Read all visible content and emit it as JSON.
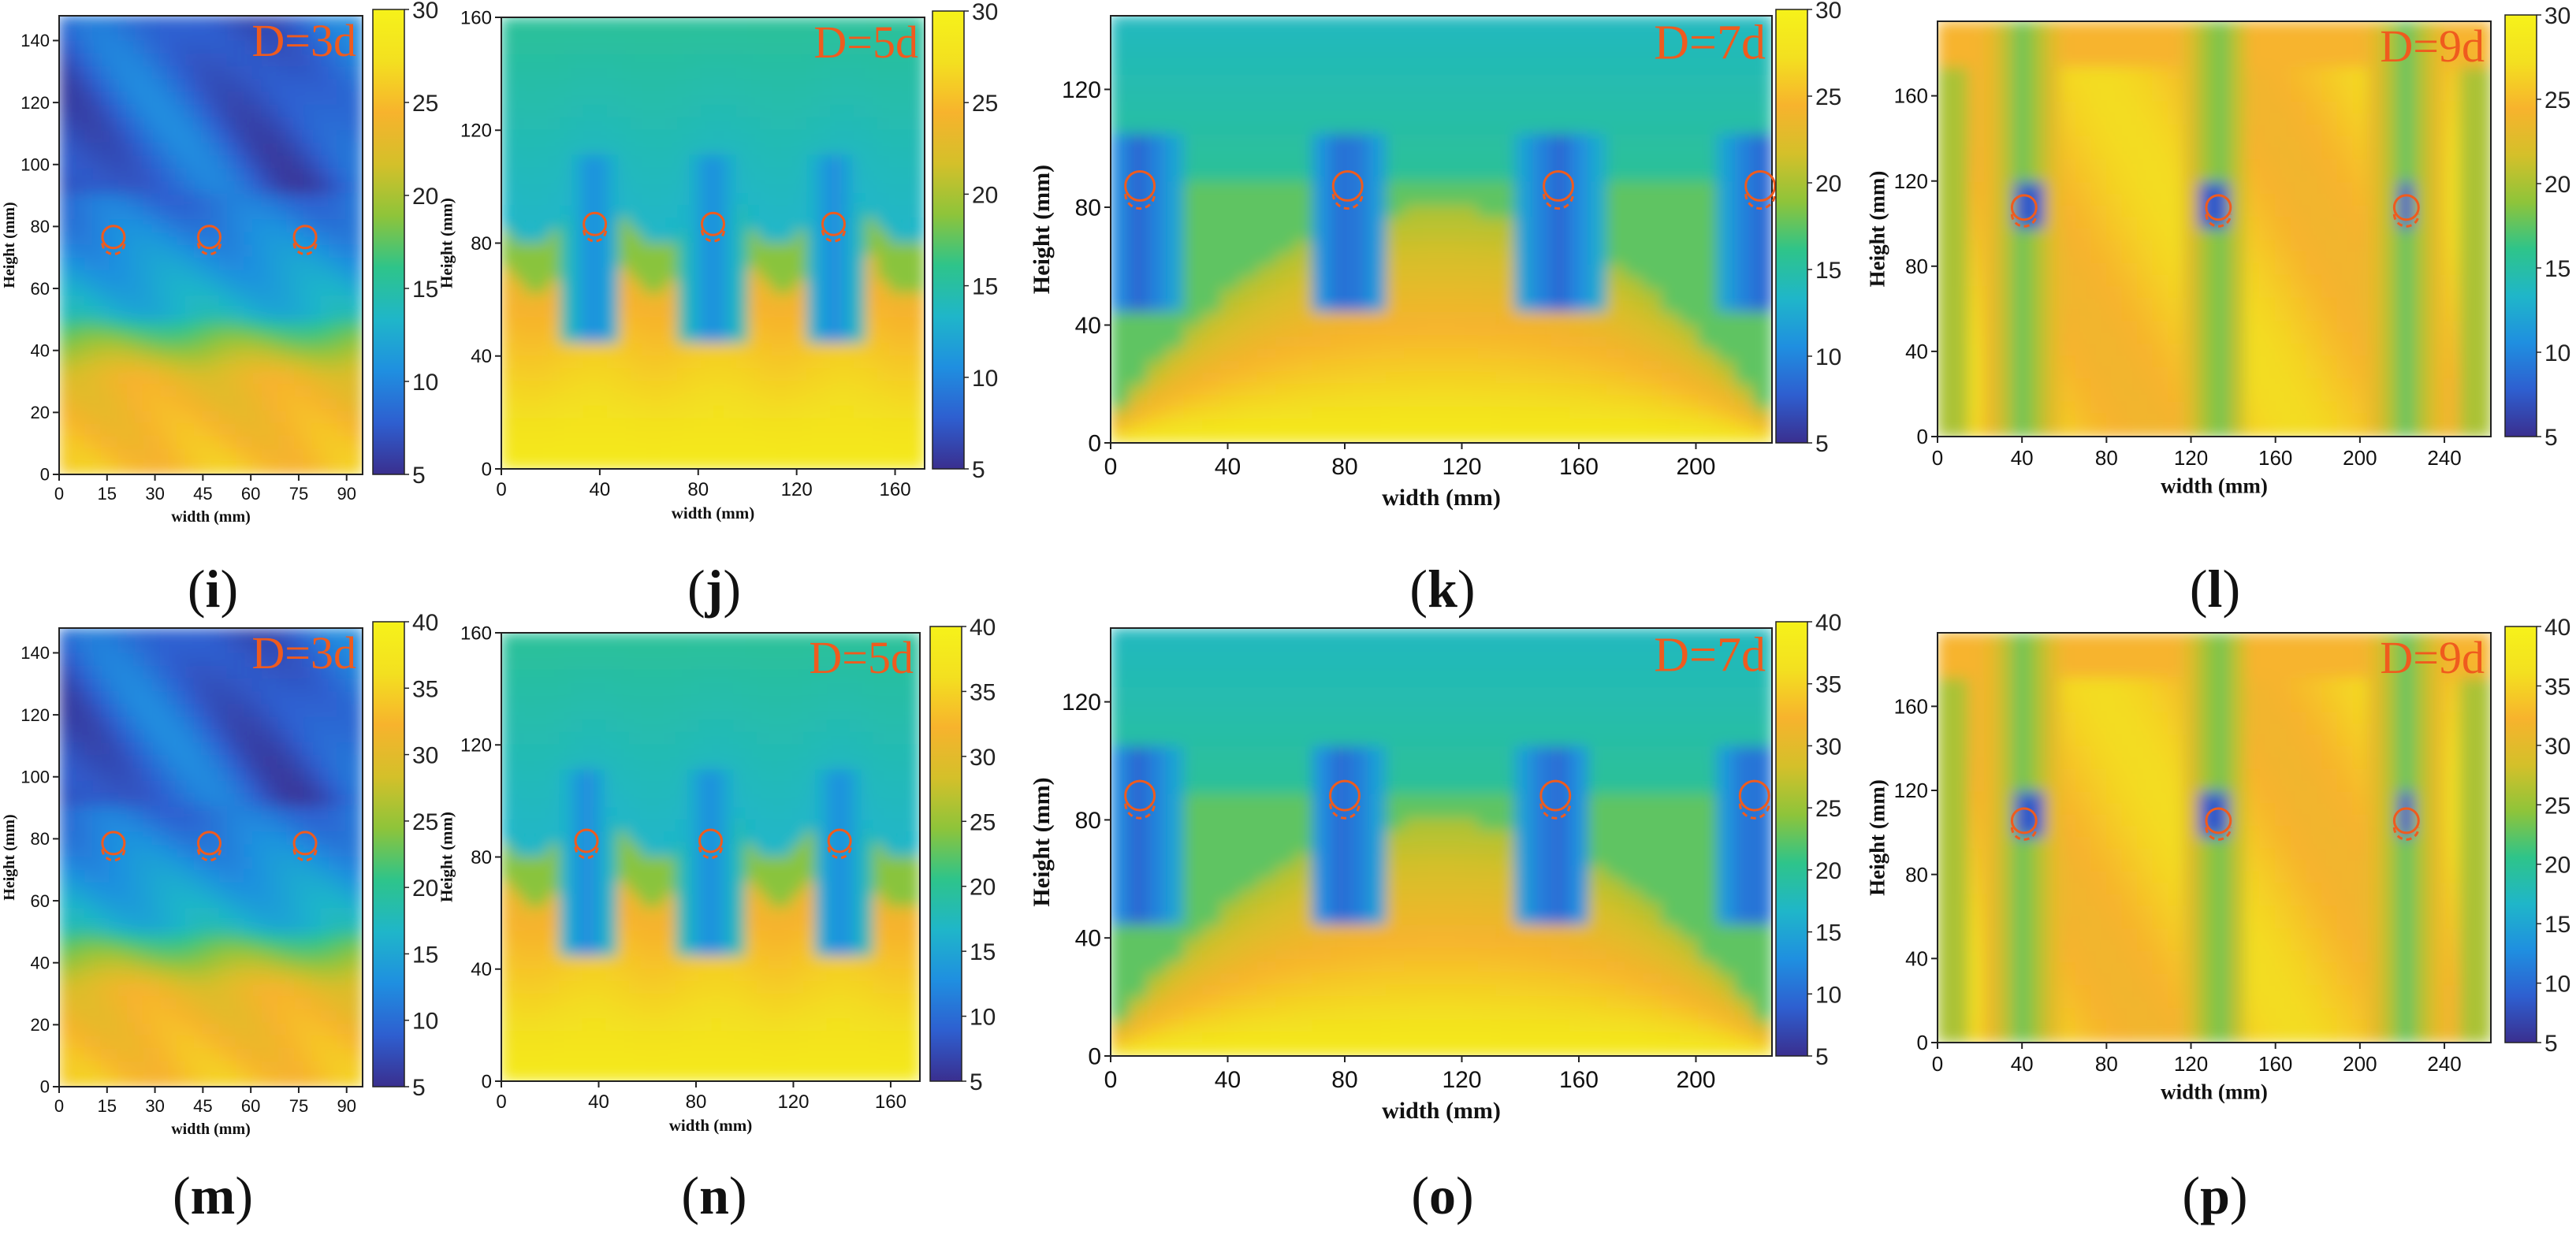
{
  "figure": {
    "palette": [
      "#3a2f8f",
      "#2e5fd0",
      "#1f8fe0",
      "#1fb6c9",
      "#2ec48a",
      "#8ec43a",
      "#d4c02a",
      "#f7b32d",
      "#f3e020",
      "#f6f21a"
    ],
    "marker_color": "#ef5b1e"
  },
  "chart_data": [
    {
      "id": "i",
      "caption_open": "(",
      "caption_letter": "i",
      "caption_close": ")",
      "type": "heatmap",
      "title": "D=3d",
      "xlabel": "width (mm)",
      "ylabel": "Height (mm)",
      "xlim": [
        0,
        95
      ],
      "ylim": [
        0,
        148
      ],
      "xticks": [
        "0",
        "15",
        "30",
        "45",
        "60",
        "75",
        "90"
      ],
      "xtick_values": [
        0,
        15,
        30,
        45,
        60,
        75,
        90
      ],
      "yticks": [
        "0",
        "20",
        "40",
        "60",
        "80",
        "100",
        "120",
        "140"
      ],
      "ytick_values": [
        0,
        20,
        40,
        60,
        80,
        100,
        120,
        140
      ],
      "colorbar": {
        "min": 5,
        "max": 30,
        "ticks": [
          "5",
          "10",
          "15",
          "20",
          "25",
          "30"
        ],
        "tick_values": [
          5,
          10,
          15,
          20,
          25,
          30
        ]
      },
      "holes_x": [
        17,
        47,
        77
      ],
      "hole_y": 75
    },
    {
      "id": "j",
      "caption_open": "(",
      "caption_letter": "j",
      "caption_close": ")",
      "type": "heatmap",
      "title": "D=5d",
      "xlabel": "width (mm)",
      "ylabel": "Height (mm)",
      "xlim": [
        0,
        172
      ],
      "ylim": [
        0,
        160
      ],
      "xticks": [
        "0",
        "40",
        "80",
        "120",
        "160"
      ],
      "xtick_values": [
        0,
        40,
        80,
        120,
        160
      ],
      "yticks": [
        "0",
        "40",
        "80",
        "120",
        "160"
      ],
      "ytick_values": [
        0,
        40,
        80,
        120,
        160
      ],
      "colorbar": {
        "min": 5,
        "max": 30,
        "ticks": [
          "5",
          "10",
          "15",
          "20",
          "25",
          "30"
        ],
        "tick_values": [
          5,
          10,
          15,
          20,
          25,
          30
        ]
      },
      "holes_x": [
        38,
        86,
        135
      ],
      "hole_y": 85
    },
    {
      "id": "k",
      "caption_open": "(",
      "caption_letter": "k",
      "caption_close": ")",
      "type": "heatmap",
      "title": "D=7d",
      "xlabel": "width (mm)",
      "ylabel": "Height (mm)",
      "xlim": [
        0,
        226
      ],
      "ylim": [
        0,
        145
      ],
      "xticks": [
        "0",
        "40",
        "80",
        "120",
        "160",
        "200"
      ],
      "xtick_values": [
        0,
        40,
        80,
        120,
        160,
        200
      ],
      "yticks": [
        "0",
        "40",
        "80",
        "120"
      ],
      "ytick_values": [
        0,
        40,
        80,
        120
      ],
      "colorbar": {
        "min": 5,
        "max": 30,
        "ticks": [
          "5",
          "10",
          "15",
          "20",
          "25",
          "30"
        ],
        "tick_values": [
          5,
          10,
          15,
          20,
          25,
          30
        ]
      },
      "holes_x": [
        10,
        81,
        153,
        222
      ],
      "hole_y": 85
    },
    {
      "id": "l",
      "caption_open": "(",
      "caption_letter": "l",
      "caption_close": ")",
      "type": "heatmap",
      "title": "D=9d",
      "xlabel": "width (mm)",
      "ylabel": "Height (mm)",
      "xlim": [
        0,
        262
      ],
      "ylim": [
        0,
        195
      ],
      "xticks": [
        "0",
        "40",
        "80",
        "120",
        "160",
        "200",
        "240"
      ],
      "xtick_values": [
        0,
        40,
        80,
        120,
        160,
        200,
        240
      ],
      "yticks": [
        "0",
        "40",
        "80",
        "120",
        "160"
      ],
      "ytick_values": [
        0,
        40,
        80,
        120,
        160
      ],
      "colorbar": {
        "min": 5,
        "max": 30,
        "ticks": [
          "5",
          "10",
          "15",
          "20",
          "25",
          "30"
        ],
        "tick_values": [
          5,
          10,
          15,
          20,
          25,
          30
        ]
      },
      "holes_x": [
        41,
        133,
        222
      ],
      "hole_y": 105
    },
    {
      "id": "m",
      "caption_open": "(",
      "caption_letter": "m",
      "caption_close": ")",
      "type": "heatmap",
      "title": "D=3d",
      "xlabel": "width (mm)",
      "ylabel": "Height (mm)",
      "xlim": [
        0,
        95
      ],
      "ylim": [
        0,
        148
      ],
      "xticks": [
        "0",
        "15",
        "30",
        "45",
        "60",
        "75",
        "90"
      ],
      "xtick_values": [
        0,
        15,
        30,
        45,
        60,
        75,
        90
      ],
      "yticks": [
        "0",
        "20",
        "40",
        "60",
        "80",
        "100",
        "120",
        "140"
      ],
      "ytick_values": [
        0,
        20,
        40,
        60,
        80,
        100,
        120,
        140
      ],
      "colorbar": {
        "min": 5,
        "max": 40,
        "ticks": [
          "5",
          "10",
          "15",
          "20",
          "25",
          "30",
          "35",
          "40"
        ],
        "tick_values": [
          5,
          10,
          15,
          20,
          25,
          30,
          35,
          40
        ]
      },
      "holes_x": [
        17,
        47,
        77
      ],
      "hole_y": 77
    },
    {
      "id": "n",
      "caption_open": "(",
      "caption_letter": "n",
      "caption_close": ")",
      "type": "heatmap",
      "title": "D=5d",
      "xlabel": "width (mm)",
      "ylabel": "Height (mm)",
      "xlim": [
        0,
        172
      ],
      "ylim": [
        0,
        160
      ],
      "xticks": [
        "0",
        "40",
        "80",
        "120",
        "160"
      ],
      "xtick_values": [
        0,
        40,
        80,
        120,
        160
      ],
      "yticks": [
        "0",
        "40",
        "80",
        "120",
        "160"
      ],
      "ytick_values": [
        0,
        40,
        80,
        120,
        160
      ],
      "colorbar": {
        "min": 5,
        "max": 40,
        "ticks": [
          "5",
          "10",
          "15",
          "20",
          "25",
          "30",
          "35",
          "40"
        ],
        "tick_values": [
          5,
          10,
          15,
          20,
          25,
          30,
          35,
          40
        ]
      },
      "holes_x": [
        35,
        86,
        139
      ],
      "hole_y": 84
    },
    {
      "id": "o",
      "caption_open": "(",
      "caption_letter": "o",
      "caption_close": ")",
      "type": "heatmap",
      "title": "D=7d",
      "xlabel": "width (mm)",
      "ylabel": "Height (mm)",
      "xlim": [
        0,
        226
      ],
      "ylim": [
        0,
        145
      ],
      "xticks": [
        "0",
        "40",
        "80",
        "120",
        "160",
        "200"
      ],
      "xtick_values": [
        0,
        40,
        80,
        120,
        160,
        200
      ],
      "yticks": [
        "0",
        "40",
        "80",
        "120"
      ],
      "ytick_values": [
        0,
        40,
        80,
        120
      ],
      "colorbar": {
        "min": 5,
        "max": 40,
        "ticks": [
          "5",
          "10",
          "15",
          "20",
          "25",
          "30",
          "35",
          "40"
        ],
        "tick_values": [
          5,
          10,
          15,
          20,
          25,
          30,
          35,
          40
        ]
      },
      "holes_x": [
        10,
        80,
        152,
        220
      ],
      "hole_y": 86
    },
    {
      "id": "p",
      "caption_open": "(",
      "caption_letter": "p",
      "caption_close": ")",
      "type": "heatmap",
      "title": "D=9d",
      "xlabel": "width (mm)",
      "ylabel": "Height (mm)",
      "xlim": [
        0,
        262
      ],
      "ylim": [
        0,
        195
      ],
      "xticks": [
        "0",
        "40",
        "80",
        "120",
        "160",
        "200",
        "240"
      ],
      "xtick_values": [
        0,
        40,
        80,
        120,
        160,
        200,
        240
      ],
      "yticks": [
        "0",
        "40",
        "80",
        "120",
        "160"
      ],
      "ytick_values": [
        0,
        40,
        80,
        120,
        160
      ],
      "colorbar": {
        "min": 5,
        "max": 40,
        "ticks": [
          "5",
          "10",
          "15",
          "20",
          "25",
          "30",
          "35",
          "40"
        ],
        "tick_values": [
          5,
          10,
          15,
          20,
          25,
          30,
          35,
          40
        ]
      },
      "holes_x": [
        41,
        133,
        222
      ],
      "hole_y": 103
    }
  ]
}
